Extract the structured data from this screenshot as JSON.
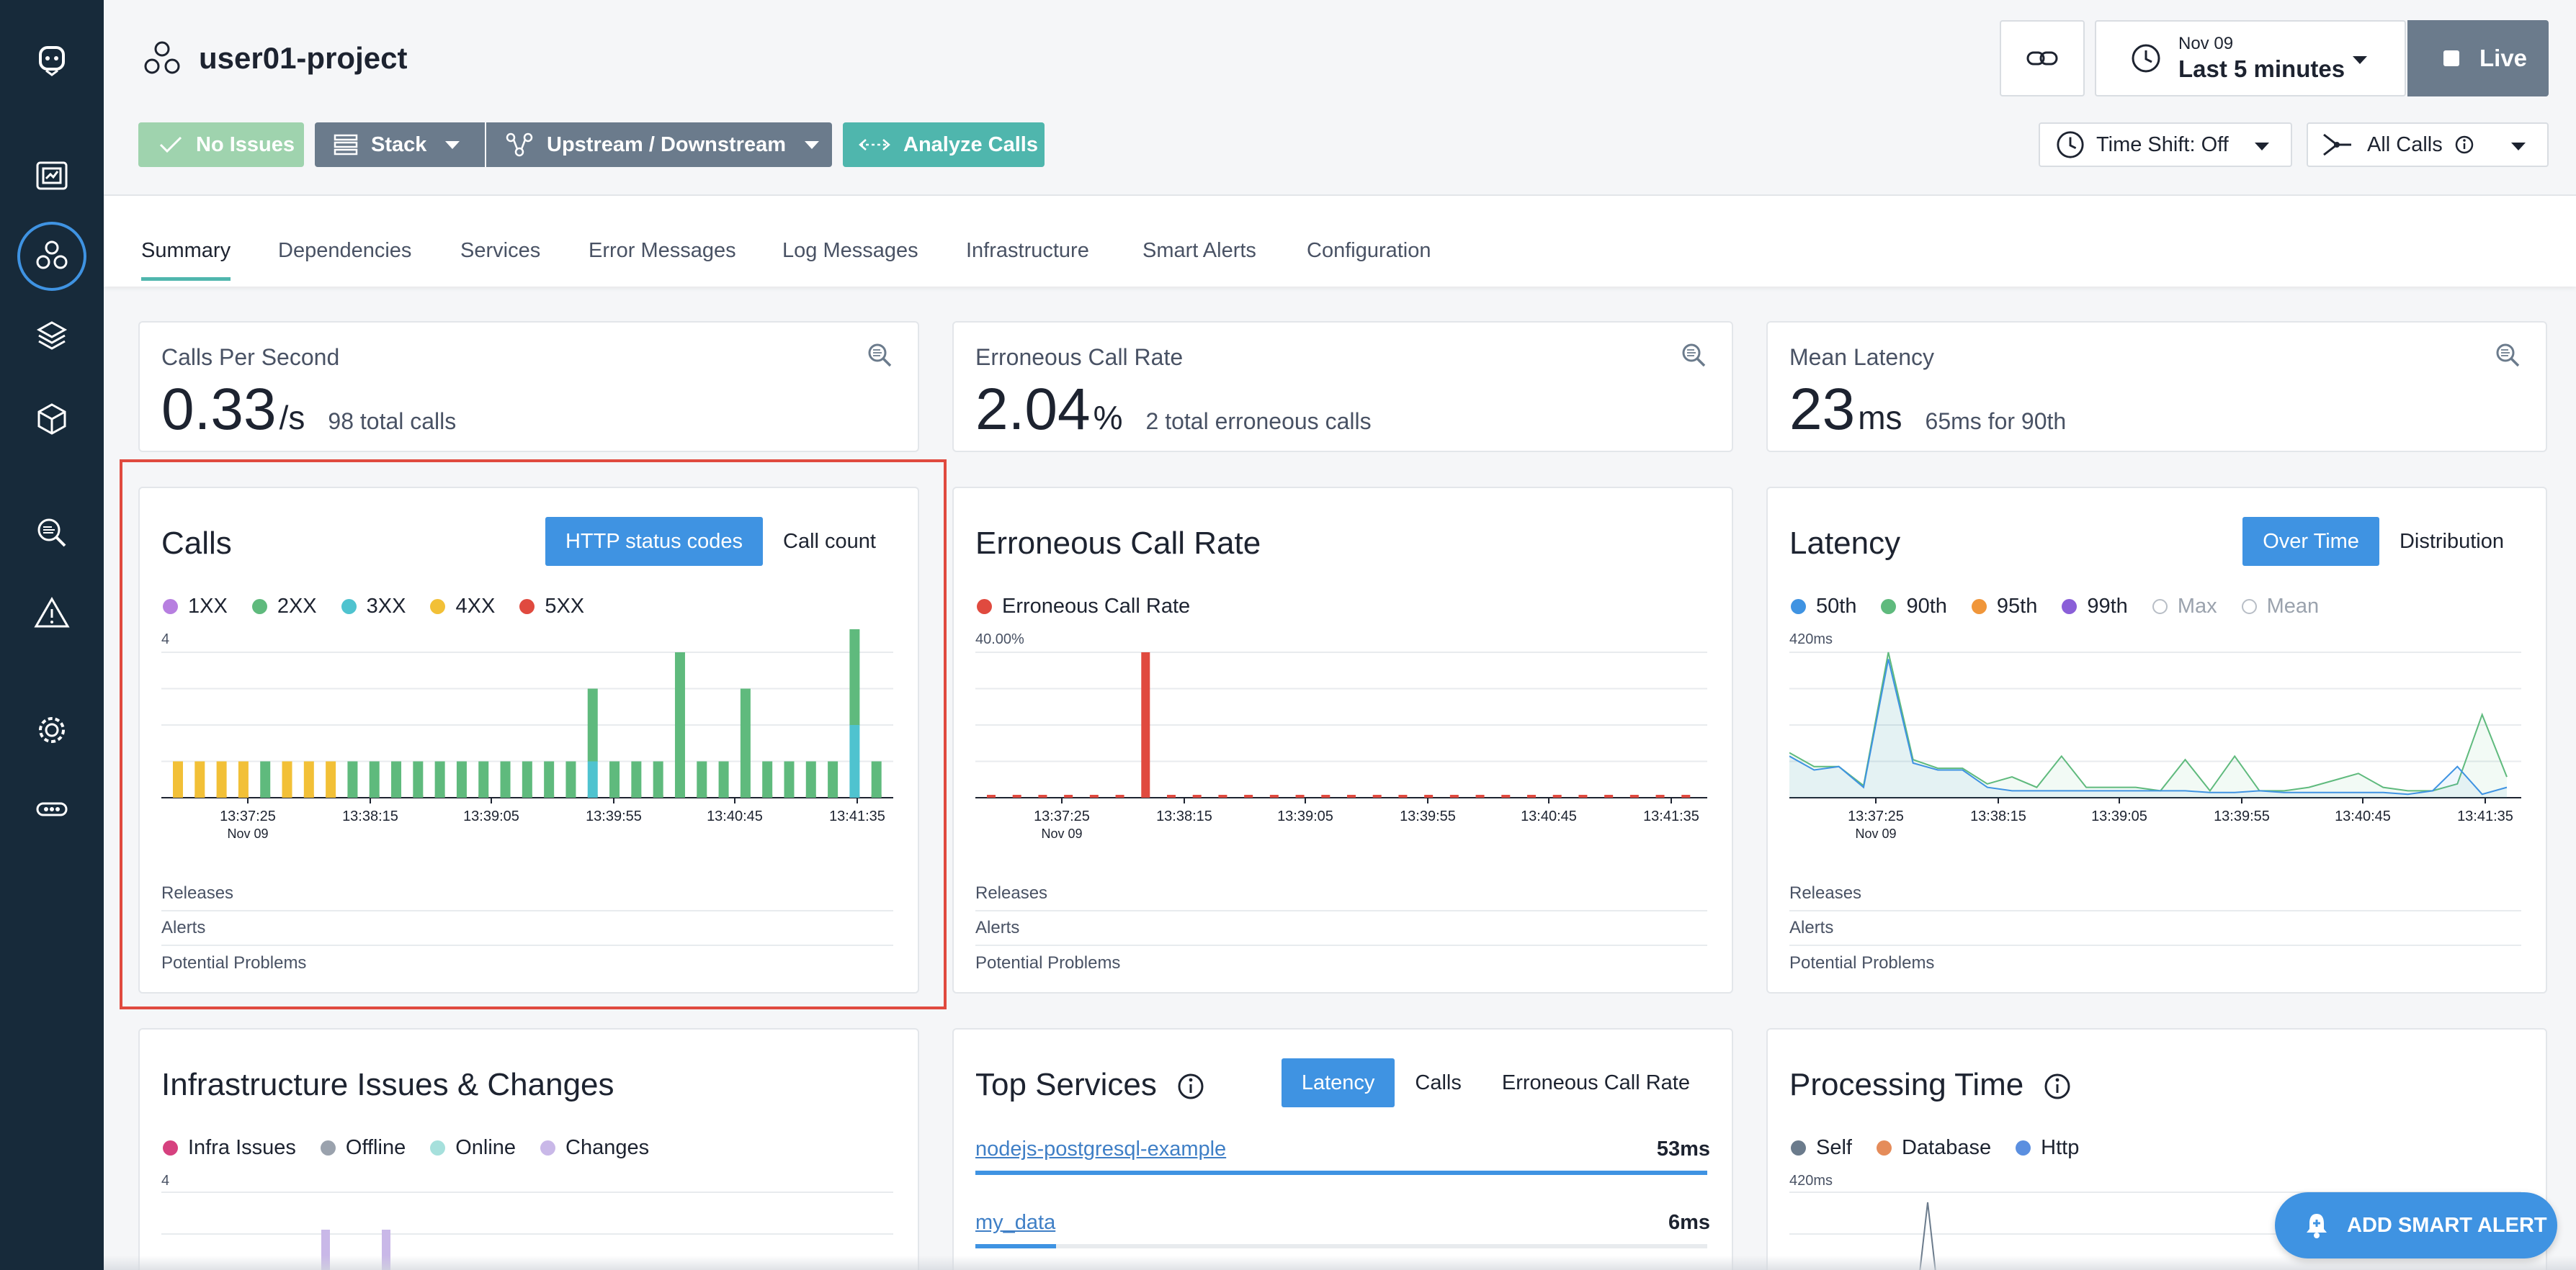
{
  "header": {
    "project_name": "user01-project",
    "no_issues_label": "No Issues",
    "stack_label": "Stack",
    "upstream_label": "Upstream / Downstream",
    "analyze_label": "Analyze Calls",
    "time_date": "Nov 09",
    "time_range": "Last 5 minutes",
    "live_label": "Live",
    "time_shift_label": "Time Shift: Off",
    "all_calls_label": "All Calls"
  },
  "tabs": [
    {
      "label": "Summary",
      "active": true
    },
    {
      "label": "Dependencies"
    },
    {
      "label": "Services"
    },
    {
      "label": "Error Messages"
    },
    {
      "label": "Log Messages"
    },
    {
      "label": "Infrastructure"
    },
    {
      "label": "Smart Alerts"
    },
    {
      "label": "Configuration"
    }
  ],
  "stats": {
    "calls": {
      "label": "Calls Per Second",
      "value": "0.33",
      "unit": "/s",
      "sub": "98 total calls"
    },
    "erroneous": {
      "label": "Erroneous Call Rate",
      "value": "2.04",
      "unit": "%",
      "sub": "2 total erroneous calls"
    },
    "latency": {
      "label": "Mean Latency",
      "value": "23",
      "unit": "ms",
      "sub": "65ms for 90th"
    }
  },
  "calls_card": {
    "title": "Calls",
    "toggle_on": "HTTP status codes",
    "toggle_off": "Call count",
    "legend": [
      "1XX",
      "2XX",
      "3XX",
      "4XX",
      "5XX"
    ],
    "y_max_label": "4",
    "x_ticks": [
      "13:37:25",
      "13:38:15",
      "13:39:05",
      "13:39:55",
      "13:40:45",
      "13:41:35"
    ],
    "x_date": "Nov 09"
  },
  "erroneous_card": {
    "title": "Erroneous Call Rate",
    "legend": [
      "Erroneous Call Rate"
    ],
    "y_max_label": "40.00%",
    "x_ticks": [
      "13:37:25",
      "13:38:15",
      "13:39:05",
      "13:39:55",
      "13:40:45",
      "13:41:35"
    ],
    "x_date": "Nov 09"
  },
  "latency_card": {
    "title": "Latency",
    "toggle_on": "Over Time",
    "toggle_off": "Distribution",
    "legend": [
      "50th",
      "90th",
      "95th",
      "99th",
      "Max",
      "Mean"
    ],
    "y_max_label": "420ms",
    "x_ticks": [
      "13:37:25",
      "13:38:15",
      "13:39:05",
      "13:39:55",
      "13:40:45",
      "13:41:35"
    ],
    "x_date": "Nov 09"
  },
  "rows": [
    "Releases",
    "Alerts",
    "Potential Problems"
  ],
  "infra_card": {
    "title": "Infrastructure Issues & Changes",
    "legend": [
      "Infra Issues",
      "Offline",
      "Online",
      "Changes"
    ],
    "y_max_label": "4"
  },
  "top_services": {
    "title": "Top Services",
    "toggle_on": "Latency",
    "toggle_mid": "Calls",
    "toggle_off": "Erroneous Call Rate",
    "services": [
      {
        "name": "nodejs-postgresql-example",
        "value": "53ms",
        "fraction": 1.0
      },
      {
        "name": "my_data",
        "value": "6ms",
        "fraction": 0.11
      }
    ]
  },
  "processing_time": {
    "title": "Processing Time",
    "legend": [
      "Self",
      "Database",
      "Http"
    ],
    "y_max_label": "420ms"
  },
  "fab_label": "ADD SMART ALERT",
  "colors": {
    "c1xx": "#b77fe0",
    "c2xx": "#5fba7d",
    "c3xx": "#4fc3cf",
    "c4xx": "#f2c037",
    "c5xx": "#e04a3f",
    "p50": "#3f93e2",
    "p90": "#5fba7d",
    "p95": "#f0963a",
    "p99": "#8a5fd8",
    "infra": "#d6417f",
    "offline": "#9aa2ad",
    "online": "#a6e0dc",
    "changes": "#c9b8e8",
    "self": "#6b7b8c",
    "database": "#e58c5a",
    "http": "#5b8fe0"
  },
  "chart_data": [
    {
      "type": "bar",
      "title": "Calls",
      "ylim": [
        0,
        4
      ],
      "series": [
        {
          "name": "2XX",
          "values": [
            0,
            0,
            0,
            0,
            1,
            0,
            0,
            0,
            1,
            1,
            1,
            1,
            1,
            1,
            1,
            1,
            1,
            1,
            1,
            2,
            1,
            1,
            1,
            4,
            1,
            1,
            3,
            1,
            1,
            1,
            1,
            3,
            1
          ]
        },
        {
          "name": "3XX",
          "values": [
            0,
            0,
            0,
            0,
            0,
            0,
            0,
            0,
            0,
            0,
            0,
            0,
            0,
            0,
            0,
            0,
            0,
            0,
            0,
            1,
            0,
            0,
            0,
            0,
            0,
            0,
            0,
            0,
            0,
            0,
            0,
            2,
            0
          ]
        },
        {
          "name": "4XX",
          "values": [
            1,
            1,
            1,
            1,
            0,
            1,
            1,
            1,
            0,
            0,
            0,
            0,
            0,
            0,
            0,
            0,
            0,
            0,
            0,
            0,
            0,
            0,
            0,
            0,
            0,
            0,
            0,
            0,
            0,
            0,
            0,
            0,
            0
          ]
        }
      ]
    },
    {
      "type": "bar",
      "title": "Erroneous Call Rate",
      "ylim": [
        0,
        40
      ],
      "series": [
        {
          "name": "Erroneous Call Rate",
          "values": [
            0,
            0,
            0,
            0,
            0,
            0,
            40,
            0,
            0,
            0,
            0,
            0,
            0,
            0,
            0,
            0,
            0,
            0,
            0,
            0,
            0,
            0,
            0,
            0,
            0,
            0,
            0,
            0
          ]
        }
      ]
    },
    {
      "type": "line",
      "title": "Latency",
      "ylim": [
        0,
        420
      ],
      "series": [
        {
          "name": "50th",
          "values": [
            120,
            80,
            90,
            30,
            400,
            100,
            80,
            80,
            30,
            20,
            20,
            20,
            20,
            20,
            20,
            20,
            20,
            15,
            15,
            20,
            15,
            15,
            15,
            15,
            15,
            10,
            20,
            90,
            10,
            30
          ]
        },
        {
          "name": "90th",
          "values": [
            130,
            90,
            90,
            35,
            420,
            110,
            85,
            85,
            40,
            60,
            30,
            120,
            30,
            30,
            30,
            20,
            110,
            20,
            120,
            20,
            20,
            30,
            50,
            70,
            30,
            20,
            20,
            40,
            240,
            60
          ]
        }
      ]
    }
  ]
}
